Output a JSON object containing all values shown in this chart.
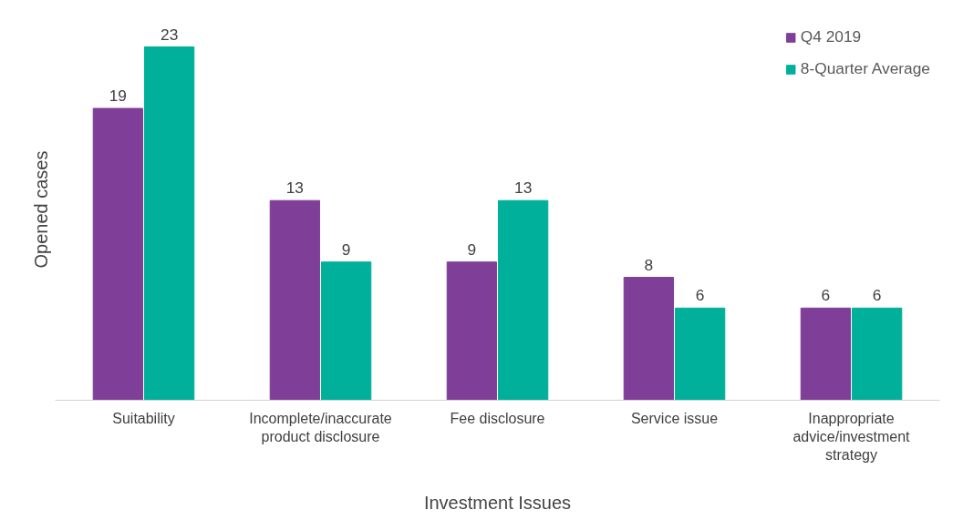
{
  "chart_data": {
    "type": "bar",
    "xlabel": "Investment Issues",
    "ylabel": "Opened cases",
    "categories": [
      "Suitability",
      "Incomplete/inaccurate product disclosure",
      "Fee disclosure",
      "Service issue",
      "Inappropriate advice/investment strategy"
    ],
    "series": [
      {
        "name": "Q4 2019",
        "color": "#7f3f98",
        "values": [
          19,
          13,
          9,
          8,
          6
        ]
      },
      {
        "name": "8-Quarter Average",
        "color": "#00b09b",
        "values": [
          23,
          9,
          13,
          6,
          6
        ]
      }
    ],
    "data_labels": true,
    "legend": "top right",
    "grid": false
  }
}
